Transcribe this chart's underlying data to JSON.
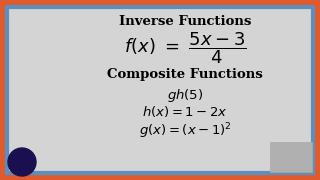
{
  "bg_color": "#d4d4d4",
  "border_color_outer": "#e05a2b",
  "border_color_inner": "#5a8fc0",
  "title1": "Inverse Functions",
  "formula1": "$f(x)\\ =\\ \\dfrac{5x-3}{4}$",
  "title2": "Composite Functions",
  "line3": "$gh(5)$",
  "line4": "$h(x) = 1 - 2x$",
  "line5": "$g(x) = (x-1)^2$",
  "title_fontsize": 9.5,
  "formula_fontsize": 13,
  "body_fontsize": 9.5,
  "outer_border_lw": 10,
  "inner_border_lw": 3
}
